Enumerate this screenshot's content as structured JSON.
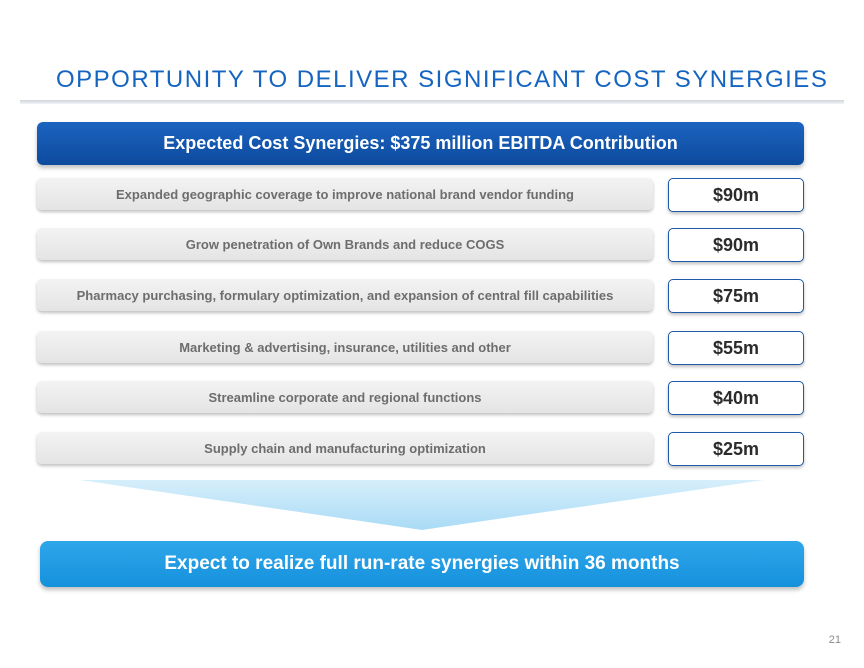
{
  "slide": {
    "title": "OPPORTUNITY TO DELIVER SIGNIFICANT COST SYNERGIES",
    "header": "Expected Cost Synergies: $375 million EBITDA Contribution",
    "rows": [
      {
        "label": "Expanded geographic coverage to improve national brand vendor funding",
        "value": "$90m"
      },
      {
        "label": "Grow penetration of Own Brands and reduce COGS",
        "value": "$90m"
      },
      {
        "label": "Pharmacy purchasing, formulary optimization, and expansion of central fill capabilities",
        "value": "$75m"
      },
      {
        "label": "Marketing & advertising, insurance, utilities and other",
        "value": "$55m"
      },
      {
        "label": "Streamline corporate and regional functions",
        "value": "$40m"
      },
      {
        "label": "Supply chain and manufacturing optimization",
        "value": "$25m"
      }
    ],
    "footer": "Expect to realize full run-rate synergies within 36 months",
    "page_number": "21"
  },
  "colors": {
    "title": "#1565c0",
    "header_bar": "#0d4a9e",
    "footer_bar": "#1a9ae2",
    "funnel": "#bfe4f8",
    "value_border": "#1e5aa8"
  }
}
